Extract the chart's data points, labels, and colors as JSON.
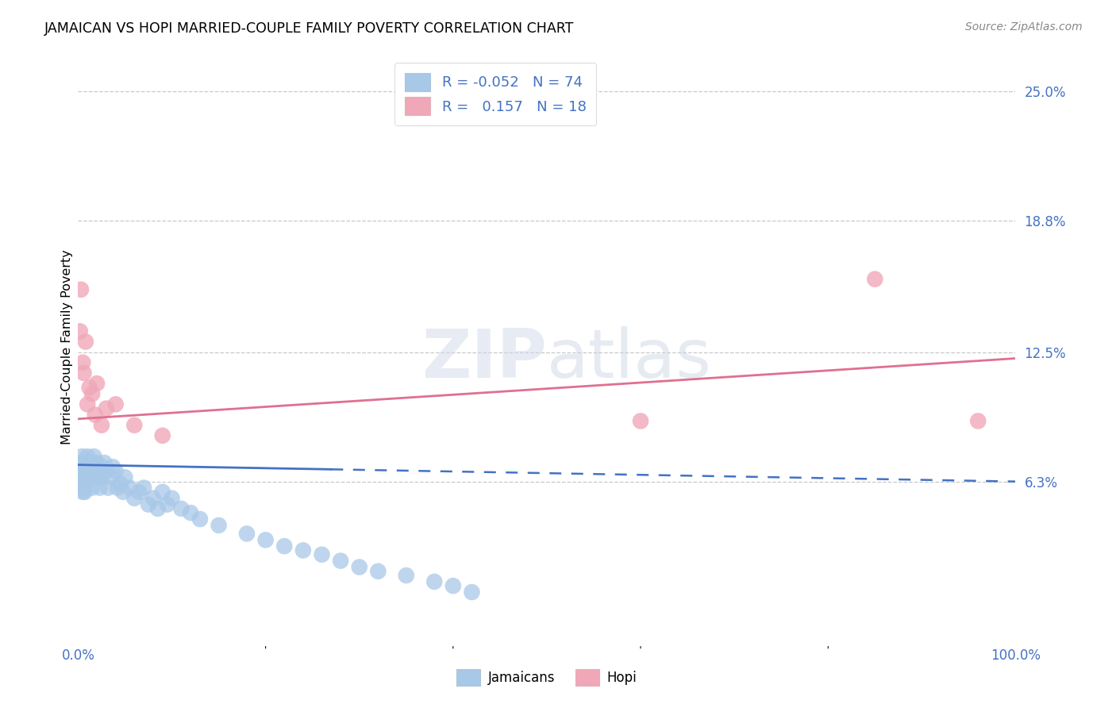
{
  "title": "JAMAICAN VS HOPI MARRIED-COUPLE FAMILY POVERTY CORRELATION CHART",
  "source": "Source: ZipAtlas.com",
  "ylabel": "Married-Couple Family Poverty",
  "watermark_zip": "ZIP",
  "watermark_atlas": "atlas",
  "xlim": [
    0.0,
    1.0
  ],
  "ylim": [
    -0.015,
    0.27
  ],
  "x_ticks": [
    0.0,
    1.0
  ],
  "x_tick_labels": [
    "0.0%",
    "100.0%"
  ],
  "y_tick_positions": [
    0.063,
    0.125,
    0.188,
    0.25
  ],
  "y_tick_labels": [
    "6.3%",
    "12.5%",
    "18.8%",
    "25.0%"
  ],
  "jamaicans_color": "#a8c8e8",
  "hopi_color": "#f0a8b8",
  "trendline_jamaicans_color": "#4472c4",
  "trendline_hopi_color": "#e07090",
  "jamaicans_R": "-0.052",
  "jamaicans_N": "74",
  "hopi_R": "0.157",
  "hopi_N": "18",
  "legend_label_jamaicans": "Jamaicans",
  "legend_label_hopi": "Hopi",
  "grid_color": "#c8c8c8",
  "background_color": "#ffffff",
  "trendline_solid_end": 0.27,
  "trendline_jamaicans_y_start": 0.071,
  "trendline_jamaicans_y_end": 0.063,
  "trendline_hopi_y_start": 0.093,
  "trendline_hopi_y_end": 0.122,
  "jamaicans_x": [
    0.002,
    0.003,
    0.003,
    0.004,
    0.004,
    0.004,
    0.005,
    0.005,
    0.005,
    0.006,
    0.006,
    0.006,
    0.007,
    0.007,
    0.007,
    0.008,
    0.008,
    0.009,
    0.009,
    0.01,
    0.01,
    0.011,
    0.011,
    0.012,
    0.013,
    0.014,
    0.015,
    0.015,
    0.016,
    0.017,
    0.018,
    0.019,
    0.02,
    0.021,
    0.022,
    0.023,
    0.025,
    0.026,
    0.028,
    0.03,
    0.032,
    0.035,
    0.037,
    0.04,
    0.042,
    0.045,
    0.048,
    0.05,
    0.055,
    0.06,
    0.065,
    0.07,
    0.075,
    0.08,
    0.085,
    0.09,
    0.095,
    0.1,
    0.11,
    0.12,
    0.13,
    0.15,
    0.18,
    0.2,
    0.22,
    0.24,
    0.26,
    0.28,
    0.3,
    0.32,
    0.35,
    0.38,
    0.4,
    0.42
  ],
  "jamaicans_y": [
    0.068,
    0.072,
    0.065,
    0.07,
    0.075,
    0.062,
    0.068,
    0.063,
    0.058,
    0.072,
    0.065,
    0.06,
    0.07,
    0.065,
    0.058,
    0.068,
    0.062,
    0.07,
    0.064,
    0.075,
    0.068,
    0.072,
    0.065,
    0.068,
    0.07,
    0.065,
    0.072,
    0.06,
    0.068,
    0.075,
    0.065,
    0.07,
    0.072,
    0.065,
    0.068,
    0.06,
    0.065,
    0.07,
    0.072,
    0.068,
    0.06,
    0.065,
    0.07,
    0.068,
    0.06,
    0.062,
    0.058,
    0.065,
    0.06,
    0.055,
    0.058,
    0.06,
    0.052,
    0.055,
    0.05,
    0.058,
    0.052,
    0.055,
    0.05,
    0.048,
    0.045,
    0.042,
    0.038,
    0.035,
    0.032,
    0.03,
    0.028,
    0.025,
    0.022,
    0.02,
    0.018,
    0.015,
    0.013,
    0.01
  ],
  "hopi_x": [
    0.002,
    0.003,
    0.005,
    0.006,
    0.008,
    0.01,
    0.012,
    0.015,
    0.018,
    0.02,
    0.025,
    0.03,
    0.04,
    0.06,
    0.09,
    0.6,
    0.85,
    0.96
  ],
  "hopi_y": [
    0.135,
    0.155,
    0.12,
    0.115,
    0.13,
    0.1,
    0.108,
    0.105,
    0.095,
    0.11,
    0.09,
    0.098,
    0.1,
    0.09,
    0.085,
    0.092,
    0.16,
    0.092
  ]
}
